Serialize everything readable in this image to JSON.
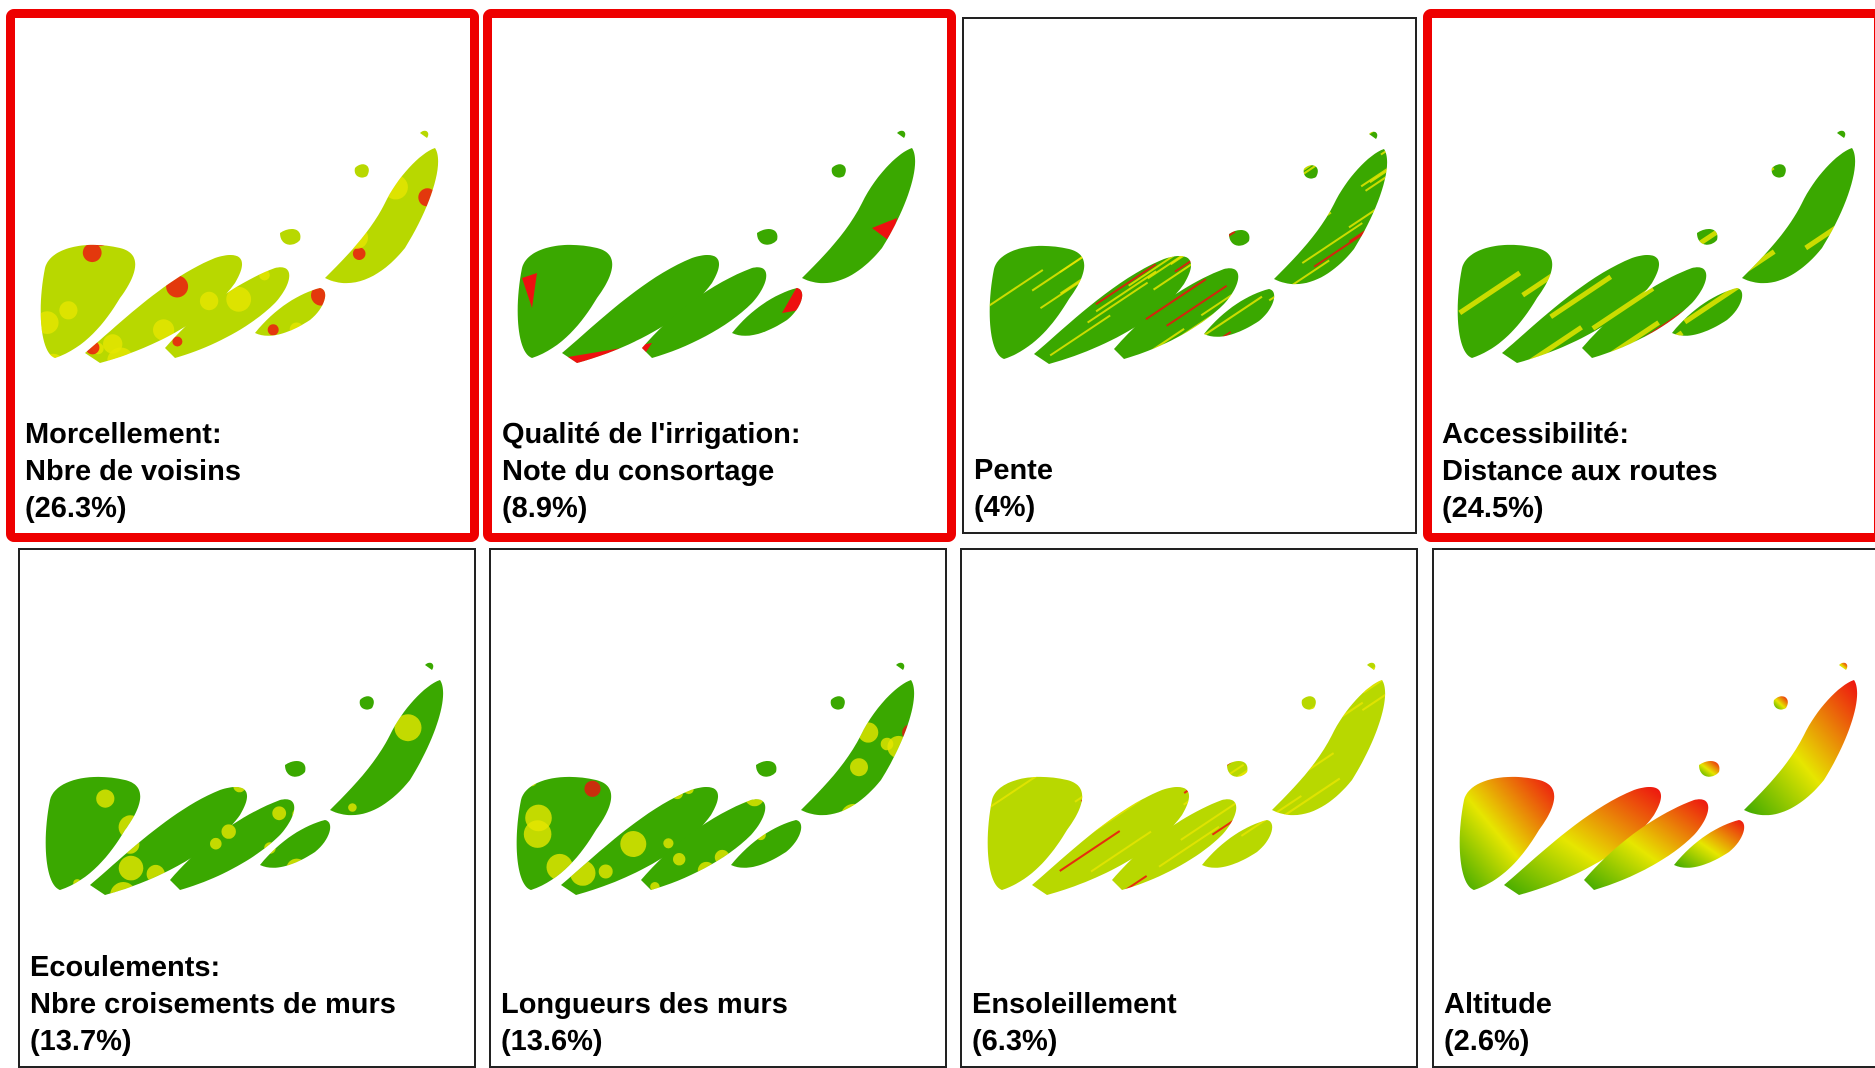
{
  "panels": [
    {
      "id": "morcellement",
      "line1": "Morcellement:",
      "line2": "Nbre de voisins",
      "weight": "(26.3%)",
      "highlighted": true,
      "scheme": "blobs-mixed"
    },
    {
      "id": "irrigation",
      "line1": "Qualité de l'irrigation:",
      "line2": "Note du consortage",
      "weight": "(8.9%)",
      "highlighted": true,
      "scheme": "binary"
    },
    {
      "id": "pente",
      "line1": "Pente",
      "line2": "",
      "weight": "(4%)",
      "highlighted": false,
      "scheme": "stripes"
    },
    {
      "id": "accessibilite",
      "line1": "Accessibilité:",
      "line2": "Distance aux routes",
      "weight": "(24.5%)",
      "highlighted": true,
      "scheme": "bands"
    },
    {
      "id": "ecoulements",
      "line1": "Ecoulements:",
      "line2": "Nbre croisements de murs",
      "weight": "(13.7%)",
      "highlighted": false,
      "scheme": "blobs-green"
    },
    {
      "id": "murs",
      "line1": "Longueurs des murs",
      "line2": "",
      "weight": "(13.6%)",
      "highlighted": false,
      "scheme": "blobs-mid"
    },
    {
      "id": "ensoleillement",
      "line1": "Ensoleillement",
      "line2": "",
      "weight": "(6.3%)",
      "highlighted": false,
      "scheme": "stripes-yellow"
    },
    {
      "id": "altitude",
      "line1": "Altitude",
      "line2": "",
      "weight": "(2.6%)",
      "highlighted": false,
      "scheme": "gradient"
    }
  ],
  "colors": {
    "low": "#3aa800",
    "mid": "#e6e600",
    "high": "#ee1010",
    "highlight_border": "#ee0000"
  }
}
